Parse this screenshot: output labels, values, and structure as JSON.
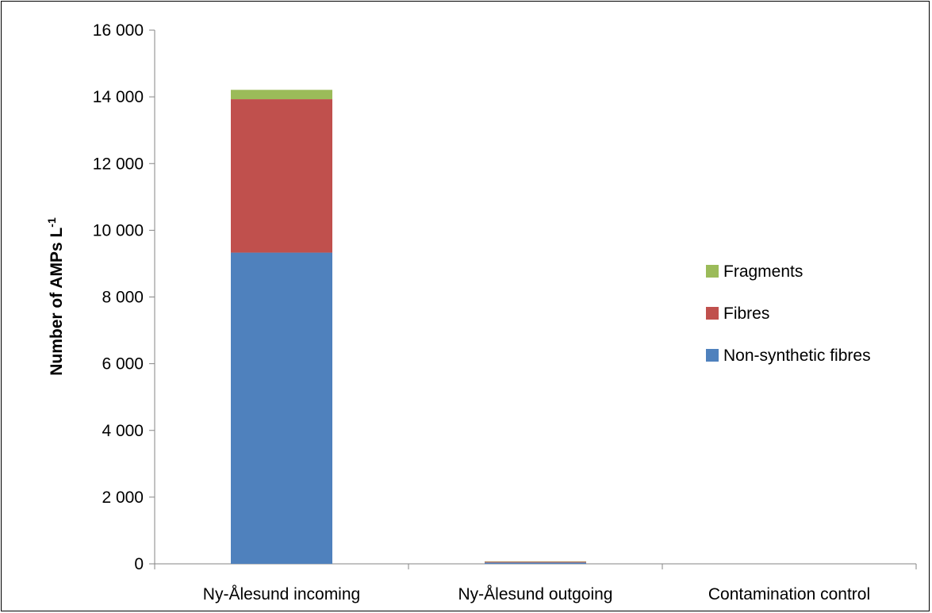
{
  "chart_data": {
    "type": "bar",
    "stacked": true,
    "title": "",
    "xlabel": "",
    "ylabel": {
      "main": "Number of AMPs L",
      "superscript": "-1"
    },
    "ylim": [
      0,
      16000
    ],
    "ytick_values": [
      0,
      2000,
      4000,
      6000,
      8000,
      10000,
      12000,
      14000,
      16000
    ],
    "ytick_labels": [
      "0",
      "2 000",
      "4 000",
      "6 000",
      "8 000",
      "10 000",
      "12 000",
      "14 000",
      "16 000"
    ],
    "categories": [
      "Ny-Ålesund incoming",
      "Ny-Ålesund outgoing",
      "Contamination control"
    ],
    "series": [
      {
        "name": "Non-synthetic fibres",
        "color": "#4f81bd",
        "values": [
          9330,
          40,
          0
        ]
      },
      {
        "name": "Fibres",
        "color": "#c0504d",
        "values": [
          4600,
          25,
          0
        ]
      },
      {
        "name": "Fragments",
        "color": "#9bbb59",
        "values": [
          280,
          10,
          0
        ]
      }
    ],
    "legend_position": "right",
    "legend_order": [
      "Fragments",
      "Fibres",
      "Non-synthetic fibres"
    ],
    "grid": false
  }
}
